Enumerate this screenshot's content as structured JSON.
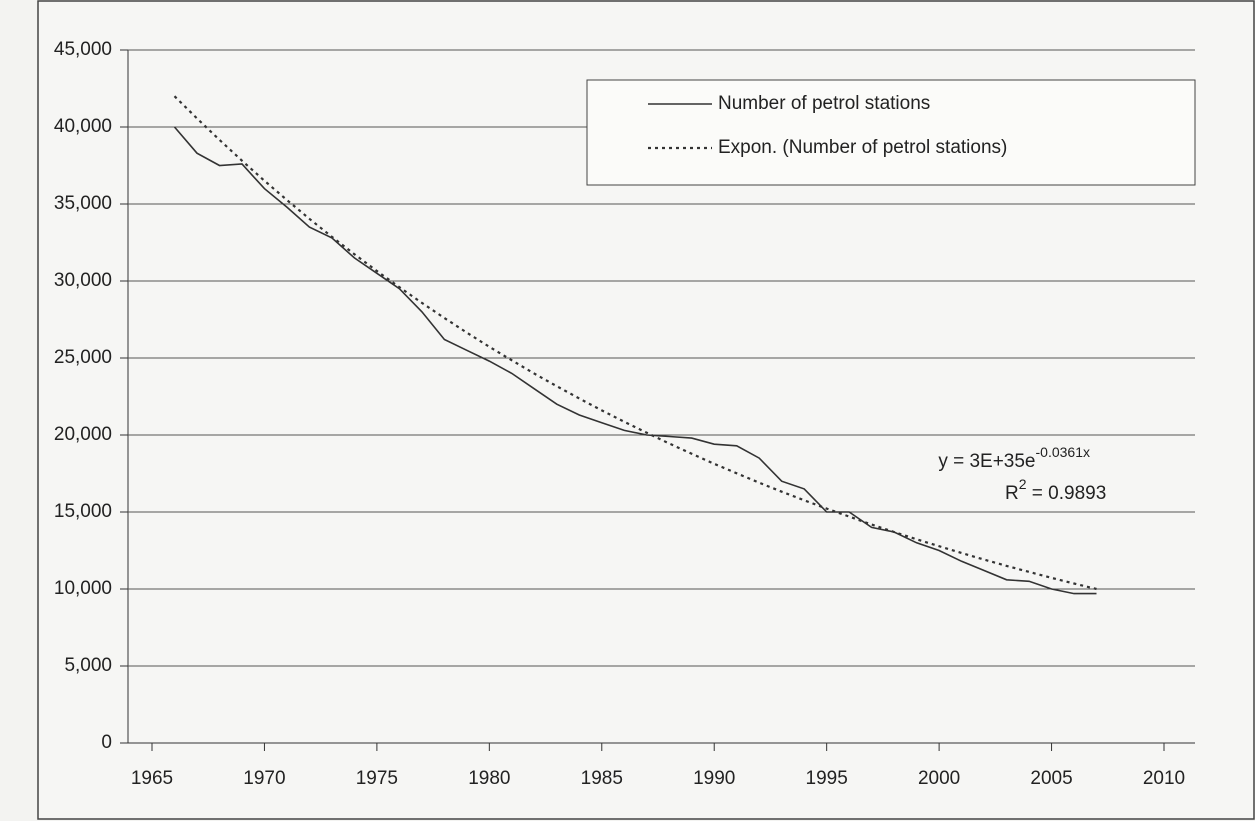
{
  "chart_data": {
    "type": "line",
    "x": [
      1966,
      1967,
      1968,
      1969,
      1970,
      1971,
      1972,
      1973,
      1974,
      1975,
      1976,
      1977,
      1978,
      1979,
      1980,
      1981,
      1982,
      1983,
      1984,
      1985,
      1986,
      1987,
      1988,
      1989,
      1990,
      1991,
      1992,
      1993,
      1994,
      1995,
      1996,
      1997,
      1998,
      1999,
      2000,
      2001,
      2002,
      2003,
      2004,
      2005,
      2006,
      2007
    ],
    "series": [
      {
        "name": "Number of petrol stations",
        "color": "#333333",
        "dash": "solid",
        "values": [
          40000,
          38300,
          37500,
          37600,
          36000,
          34800,
          33500,
          32800,
          31500,
          30500,
          29500,
          28000,
          26200,
          25500,
          24800,
          24000,
          23000,
          22000,
          21300,
          20800,
          20300,
          20000,
          19900,
          19800,
          19400,
          19300,
          18500,
          17000,
          16500,
          15000,
          15000,
          14000,
          13700,
          13000,
          12500,
          11800,
          11200,
          10600,
          10500,
          10000,
          9700,
          9700
        ]
      },
      {
        "name": "Expon. (Number of petrol stations)",
        "color": "#333333",
        "dash": "dotted",
        "values": [
          42000,
          40560,
          39160,
          37810,
          36510,
          35260,
          34040,
          32870,
          31740,
          30650,
          29600,
          28580,
          27600,
          26650,
          25730,
          24850,
          23990,
          23170,
          22370,
          21600,
          20860,
          20140,
          19450,
          18780,
          18130,
          17510,
          16900,
          16320,
          15760,
          15220,
          14700,
          14190,
          13700,
          13230,
          12780,
          12340,
          11910,
          11500,
          11110,
          10720,
          10360,
          10000
        ]
      }
    ],
    "xlim": [
      1965,
      2010
    ],
    "xticks": [
      1965,
      1970,
      1975,
      1980,
      1985,
      1990,
      1995,
      2000,
      2005,
      2010
    ],
    "ylim": [
      0,
      45000
    ],
    "yticks": [
      0,
      {
        "value": 5000,
        "label": "5,000"
      },
      {
        "value": 10000,
        "label": "10,000"
      },
      {
        "value": 15000,
        "label": "15,000"
      },
      {
        "value": 20000,
        "label": "20,000"
      },
      {
        "value": 25000,
        "label": "25,000"
      },
      {
        "value": 30000,
        "label": "30,000"
      },
      {
        "value": 35000,
        "label": "35,000"
      },
      {
        "value": 40000,
        "label": "40,000"
      },
      {
        "value": 45000,
        "label": "45,000"
      }
    ],
    "grid": true,
    "legend": "top-right",
    "equation": {
      "base": "y = 3E+35e",
      "exponent": "-0.0361x"
    },
    "r_squared": {
      "base": "R",
      "exponent": "2",
      "rest": " = 0.9893"
    }
  }
}
